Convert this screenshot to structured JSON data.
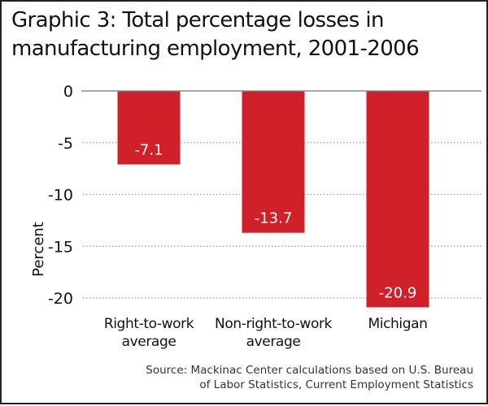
{
  "chart_data": {
    "type": "bar",
    "title": "Graphic 3: Total percentage losses in manufacturing employment, 2001-2006",
    "title_lines": [
      "Graphic 3: Total percentage losses in",
      "manufacturing employment, 2001-2006"
    ],
    "categories": [
      "Right-to-work average",
      "Non-right-to-work average",
      "Michigan"
    ],
    "category_lines": [
      [
        "Right-to-work",
        "average"
      ],
      [
        "Non-right-to-work",
        "average"
      ],
      [
        "Michigan"
      ]
    ],
    "values": [
      -7.1,
      -13.7,
      -20.9
    ],
    "data_labels": [
      "-7.1",
      "-13.7",
      "-20.9"
    ],
    "xlabel": "",
    "ylabel": "Percent",
    "ylim": [
      -21,
      0
    ],
    "yticks": [
      0,
      -5,
      -10,
      -15,
      -20
    ],
    "grid": true,
    "bar_color": "#d0202a",
    "source_lines": [
      "Source: Mackinac Center calculations based on U.S. Bureau",
      "of Labor Statistics, Current Employment Statistics"
    ]
  }
}
